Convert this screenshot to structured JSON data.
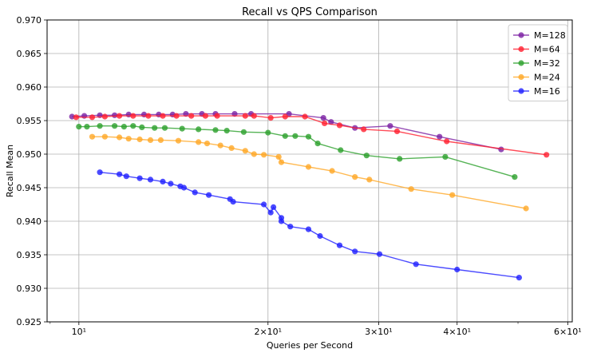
{
  "chart_data": {
    "type": "line",
    "title": "Recall vs QPS Comparison",
    "xlabel": "Queries per Second",
    "ylabel": "Recall Mean",
    "xscale": "log",
    "xlim": [
      8.9,
      61
    ],
    "ylim": [
      0.925,
      0.97
    ],
    "grid": true,
    "legend_position": "top-right",
    "x_major_ticks": [
      {
        "value": 10,
        "label": "10¹"
      },
      {
        "value": 20,
        "label": "2×10¹"
      },
      {
        "value": 30,
        "label": "3×10¹"
      },
      {
        "value": 40,
        "label": "4×10¹"
      },
      {
        "value": 60,
        "label": "6×10¹"
      }
    ],
    "y_ticks": [
      "0.925",
      "0.930",
      "0.935",
      "0.940",
      "0.945",
      "0.950",
      "0.955",
      "0.960",
      "0.965",
      "0.970"
    ],
    "series": [
      {
        "name": "M=128",
        "color": "#7b1fa2",
        "points": [
          [
            9.75,
            0.9556
          ],
          [
            10.2,
            0.9557
          ],
          [
            10.8,
            0.9558
          ],
          [
            11.4,
            0.9558
          ],
          [
            12.0,
            0.9559
          ],
          [
            12.7,
            0.9559
          ],
          [
            13.4,
            0.9559
          ],
          [
            14.1,
            0.9559
          ],
          [
            14.8,
            0.956
          ],
          [
            15.7,
            0.956
          ],
          [
            16.5,
            0.956
          ],
          [
            17.7,
            0.956
          ],
          [
            18.8,
            0.956
          ],
          [
            21.6,
            0.956
          ],
          [
            24.5,
            0.9554
          ],
          [
            25.2,
            0.9548
          ],
          [
            27.5,
            0.9539
          ],
          [
            31.3,
            0.9542
          ],
          [
            37.5,
            0.9526
          ],
          [
            47.0,
            0.9507
          ]
        ]
      },
      {
        "name": "M=64",
        "color": "#ff1f2f",
        "points": [
          [
            9.9,
            0.9555
          ],
          [
            10.5,
            0.9555
          ],
          [
            11.0,
            0.9556
          ],
          [
            11.6,
            0.9557
          ],
          [
            12.2,
            0.9557
          ],
          [
            12.9,
            0.9557
          ],
          [
            13.6,
            0.9557
          ],
          [
            14.3,
            0.9557
          ],
          [
            15.1,
            0.9557
          ],
          [
            15.9,
            0.9557
          ],
          [
            16.6,
            0.9557
          ],
          [
            18.4,
            0.9557
          ],
          [
            19.0,
            0.9557
          ],
          [
            20.2,
            0.9554
          ],
          [
            21.3,
            0.9556
          ],
          [
            22.9,
            0.9556
          ],
          [
            24.6,
            0.9546
          ],
          [
            26.0,
            0.9543
          ],
          [
            28.4,
            0.9537
          ],
          [
            32.1,
            0.9534
          ],
          [
            38.5,
            0.9519
          ],
          [
            55.5,
            0.9499
          ]
        ]
      },
      {
        "name": "M=32",
        "color": "#2ca02c",
        "points": [
          [
            10.0,
            0.9541
          ],
          [
            10.3,
            0.9541
          ],
          [
            10.8,
            0.9542
          ],
          [
            11.4,
            0.9542
          ],
          [
            11.8,
            0.9541
          ],
          [
            12.2,
            0.9542
          ],
          [
            12.6,
            0.954
          ],
          [
            13.2,
            0.9539
          ],
          [
            13.7,
            0.9539
          ],
          [
            14.6,
            0.9538
          ],
          [
            15.5,
            0.9537
          ],
          [
            16.5,
            0.9536
          ],
          [
            17.2,
            0.9535
          ],
          [
            18.3,
            0.9533
          ],
          [
            20.0,
            0.9532
          ],
          [
            21.3,
            0.9527
          ],
          [
            22.1,
            0.9527
          ],
          [
            23.2,
            0.9526
          ],
          [
            24.0,
            0.9516
          ],
          [
            26.1,
            0.9506
          ],
          [
            28.7,
            0.9498
          ],
          [
            32.4,
            0.9493
          ],
          [
            38.3,
            0.9496
          ],
          [
            49.4,
            0.9466
          ]
        ]
      },
      {
        "name": "M=24",
        "color": "#ffa726",
        "points": [
          [
            10.5,
            0.9526
          ],
          [
            11.0,
            0.9526
          ],
          [
            11.6,
            0.9525
          ],
          [
            12.0,
            0.9523
          ],
          [
            12.5,
            0.9522
          ],
          [
            13.0,
            0.9521
          ],
          [
            13.5,
            0.9521
          ],
          [
            14.4,
            0.952
          ],
          [
            15.5,
            0.9518
          ],
          [
            16.0,
            0.9516
          ],
          [
            16.8,
            0.9513
          ],
          [
            17.5,
            0.9509
          ],
          [
            18.4,
            0.9505
          ],
          [
            19.0,
            0.95
          ],
          [
            19.7,
            0.9499
          ],
          [
            20.8,
            0.9496
          ],
          [
            21.0,
            0.9488
          ],
          [
            23.2,
            0.9481
          ],
          [
            25.3,
            0.9475
          ],
          [
            27.5,
            0.9466
          ],
          [
            29.0,
            0.9462
          ],
          [
            33.8,
            0.9448
          ],
          [
            39.3,
            0.9439
          ],
          [
            51.5,
            0.9419
          ]
        ]
      },
      {
        "name": "M=16",
        "color": "#1f1fff",
        "points": [
          [
            10.8,
            0.9473
          ],
          [
            11.6,
            0.947
          ],
          [
            11.9,
            0.9467
          ],
          [
            12.5,
            0.9464
          ],
          [
            13.0,
            0.9462
          ],
          [
            13.6,
            0.9459
          ],
          [
            14.0,
            0.9456
          ],
          [
            14.5,
            0.9452
          ],
          [
            14.7,
            0.945
          ],
          [
            15.3,
            0.9443
          ],
          [
            16.1,
            0.9439
          ],
          [
            17.4,
            0.9433
          ],
          [
            17.6,
            0.9429
          ],
          [
            19.7,
            0.9425
          ],
          [
            20.2,
            0.9413
          ],
          [
            20.4,
            0.9421
          ],
          [
            21.0,
            0.9405
          ],
          [
            21.0,
            0.94
          ],
          [
            21.7,
            0.9392
          ],
          [
            23.2,
            0.9388
          ],
          [
            24.2,
            0.9378
          ],
          [
            26.0,
            0.9364
          ],
          [
            27.5,
            0.9355
          ],
          [
            30.1,
            0.9351
          ],
          [
            34.4,
            0.9336
          ],
          [
            40.0,
            0.9328
          ],
          [
            50.2,
            0.9316
          ]
        ]
      }
    ]
  }
}
